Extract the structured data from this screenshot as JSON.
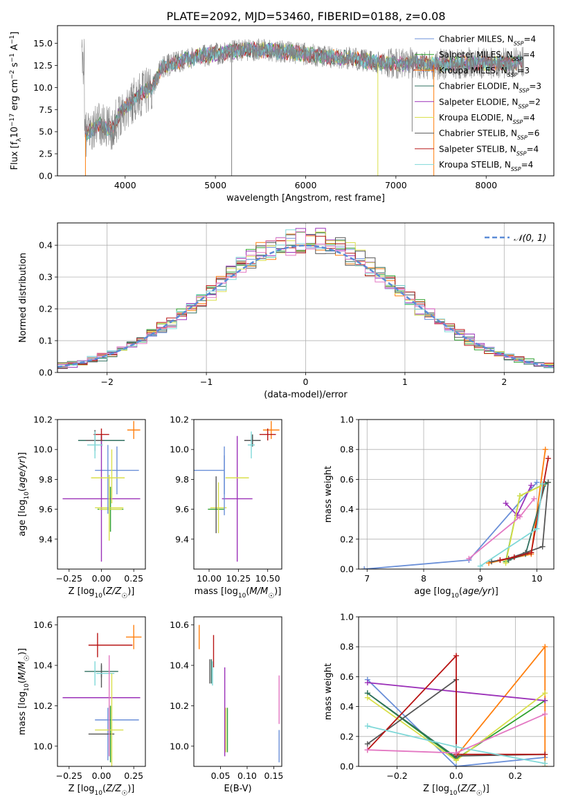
{
  "figure": {
    "title": "PLATE=2092, MJD=53460, FIBERID=0188, z=0.08"
  },
  "series": [
    {
      "key": "cm",
      "label_pre": "Chabrier MILES, N",
      "label_post": "=4",
      "color": "#6a8fd8"
    },
    {
      "key": "sm",
      "label_pre": "Salpeter MILES, N",
      "label_post": "=4",
      "color": "#2ca02c"
    },
    {
      "key": "km",
      "label_pre": "Kroupa MILES, N",
      "label_post": "=3",
      "color": "#ff7f0e"
    },
    {
      "key": "ce",
      "label_pre": "Chabrier ELODIE, N",
      "label_post": "=3",
      "color": "#2f6f5f"
    },
    {
      "key": "se",
      "label_pre": "Salpeter ELODIE, N",
      "label_post": "=2",
      "color": "#9b30b8"
    },
    {
      "key": "ke",
      "label_pre": "Kroupa ELODIE, N",
      "label_post": "=4",
      "color": "#d9df4a"
    },
    {
      "key": "cs",
      "label_pre": "Chabrier STELIB, N",
      "label_post": "=6",
      "color": "#555555"
    },
    {
      "key": "ss",
      "label_pre": "Salpeter STELIB, N",
      "label_post": "=4",
      "color": "#b81414"
    },
    {
      "key": "ks",
      "label_pre": "Kroupa STELIB, N",
      "label_post": "=4",
      "color": "#7fd8d8"
    }
  ],
  "legend_subscript": "SSP",
  "hist_legend": "𝒩(0, 1)",
  "chart_data": [
    {
      "id": "spectrum",
      "type": "line",
      "title": "PLATE=2092, MJD=53460, FIBERID=0188, z=0.08",
      "xlabel": "wavelength [Angstrom, rest frame]",
      "ylabel": "Flux [f_λ 10⁻¹⁷ erg cm⁻² s⁻¹ A⁻¹]",
      "xlim": [
        3250,
        8750
      ],
      "ylim": [
        0,
        17
      ],
      "xticks": [
        4000,
        5000,
        6000,
        7000,
        8000
      ],
      "yticks": [
        0.0,
        2.5,
        5.0,
        7.5,
        10.0,
        12.5,
        15.0
      ],
      "continuum": [
        [
          3550,
          4.6
        ],
        [
          3700,
          5.8
        ],
        [
          3850,
          5.2
        ],
        [
          3950,
          7.2
        ],
        [
          4050,
          8.2
        ],
        [
          4200,
          9.5
        ],
        [
          4300,
          10.0
        ],
        [
          4400,
          12.2
        ],
        [
          4600,
          13.0
        ],
        [
          4800,
          13.5
        ],
        [
          5000,
          13.8
        ],
        [
          5300,
          14.3
        ],
        [
          5600,
          14.2
        ],
        [
          5900,
          13.9
        ],
        [
          6200,
          13.5
        ],
        [
          6500,
          13.3
        ],
        [
          6800,
          12.8
        ],
        [
          7000,
          12.7
        ],
        [
          7200,
          12.8
        ],
        [
          7450,
          12.6
        ],
        [
          7800,
          12.8
        ],
        [
          8200,
          12.7
        ],
        [
          8400,
          12.9
        ]
      ],
      "legend": "upper right"
    },
    {
      "id": "residuals",
      "type": "histogram",
      "xlabel": "(data-model)/error",
      "ylabel": "Normed distribution",
      "xlim": [
        -2.5,
        2.5
      ],
      "ylim": [
        0,
        0.47
      ],
      "xticks": [
        -2,
        -1,
        0,
        1,
        2
      ],
      "yticks": [
        0.0,
        0.1,
        0.2,
        0.3,
        0.4
      ],
      "bin_width": 0.1,
      "curve": "normal(0,1)",
      "grid": true,
      "legend": "upper right"
    },
    {
      "id": "age_vs_Z",
      "type": "errorbar",
      "xlabel": "Z [log10(Z/Z☉)]",
      "ylabel": "age [log10(age/yr)]",
      "xlim": [
        -0.34,
        0.34
      ],
      "ylim": [
        9.2,
        10.2
      ],
      "xticks": [
        -0.25,
        0.0,
        0.25
      ],
      "yticks": [
        9.4,
        9.6,
        9.8,
        10.0,
        10.2
      ],
      "points": [
        {
          "s": "cm",
          "x": 0.12,
          "xe": 0.17,
          "y": 9.86,
          "ye": 0.16
        },
        {
          "s": "sm",
          "x": 0.07,
          "xe": 0.1,
          "y": 9.6,
          "ye": 0.15
        },
        {
          "s": "km",
          "x": 0.25,
          "xe": 0.05,
          "y": 10.13,
          "ye": 0.06
        },
        {
          "s": "ce",
          "x": 0.0,
          "xe": 0.18,
          "y": 10.06,
          "ye": 0.04
        },
        {
          "s": "se",
          "x": 0.0,
          "xe": 0.3,
          "y": 9.67,
          "ye": 0.42
        },
        {
          "s": "ke",
          "x": 0.06,
          "xe": 0.11,
          "y": 9.61,
          "ye": 0.22
        },
        {
          "s": "cs",
          "x": -0.05,
          "xe": 0.07,
          "y": 10.06,
          "ye": 0.07
        },
        {
          "s": "ss",
          "x": 0.0,
          "xe": 0.06,
          "y": 10.1,
          "ye": 0.04
        },
        {
          "s": "ks",
          "x": -0.05,
          "xe": 0.06,
          "y": 10.03,
          "ye": 0.09
        }
      ],
      "extra": [
        {
          "s": "ke",
          "x": 0.07,
          "xe": 0.09,
          "y": 9.6,
          "ye": 0.0
        },
        {
          "s": "cm",
          "x": 0.05,
          "xe": 0.0,
          "y": 9.8,
          "ye": 0.23
        },
        {
          "s": "ke",
          "x": 0.08,
          "xe": 0.0,
          "y": 9.82,
          "ye": 0.18
        },
        {
          "s": "ke",
          "x": 0.05,
          "xe": 0.13,
          "y": 9.81,
          "ye": 0.0
        }
      ]
    },
    {
      "id": "age_vs_mass",
      "type": "errorbar",
      "xlabel": "mass [log10(M/M☉)]",
      "ylabel": "",
      "xlim": [
        9.87,
        10.62
      ],
      "ylim": [
        9.2,
        10.2
      ],
      "xticks": [
        10.0,
        10.25,
        10.5
      ],
      "yticks": [
        9.4,
        9.6,
        9.8,
        10.0,
        10.2
      ],
      "points": [
        {
          "s": "cm",
          "x": 10.0,
          "xe": 0.13,
          "y": 9.86,
          "ye": 0.0
        },
        {
          "s": "cm",
          "x": 10.13,
          "xe": 0.0,
          "y": 9.86,
          "ye": 0.16
        },
        {
          "s": "sm",
          "x": 10.06,
          "xe": 0.07,
          "y": 9.6,
          "ye": 0.0
        },
        {
          "s": "km",
          "x": 10.53,
          "xe": 0.07,
          "y": 10.13,
          "ye": 0.06
        },
        {
          "s": "ce",
          "x": 10.37,
          "xe": 0.04,
          "y": 10.06,
          "ye": 0.04
        },
        {
          "s": "se",
          "x": 10.24,
          "xe": 0.13,
          "y": 9.67,
          "ye": 0.42
        },
        {
          "s": "ke",
          "x": 10.08,
          "xe": 0.07,
          "y": 9.61,
          "ye": 0.17
        },
        {
          "s": "cs",
          "x": 10.37,
          "xe": 0.07,
          "y": 10.06,
          "ye": 0.04
        },
        {
          "s": "ss",
          "x": 10.5,
          "xe": 0.07,
          "y": 10.1,
          "ye": 0.04
        },
        {
          "s": "ks",
          "x": 10.36,
          "xe": 0.03,
          "y": 10.03,
          "ye": 0.09
        },
        {
          "s": "cs",
          "x": 10.06,
          "xe": 0.0,
          "y": 9.63,
          "ye": 0.19
        }
      ],
      "extra": [
        {
          "s": "ke",
          "x": 10.24,
          "xe": 0.1,
          "y": 9.81,
          "ye": 0.0
        },
        {
          "s": "cm",
          "x": 10.13,
          "xe": 0.0,
          "y": 9.76,
          "ye": 0.2
        }
      ]
    },
    {
      "id": "weight_vs_age",
      "type": "line",
      "xlabel": "age [log10(age/yr)]",
      "ylabel": "mass weight",
      "xlim": [
        6.85,
        10.3
      ],
      "ylim": [
        0,
        1
      ],
      "xticks": [
        7,
        8,
        9,
        10
      ],
      "yticks": [
        0.0,
        0.2,
        0.4,
        0.6,
        0.8,
        1.0
      ],
      "grid": true,
      "lines": [
        {
          "s": "cm",
          "x": [
            6.95,
            8.8,
            10.0
          ],
          "y": [
            0.0,
            0.06,
            0.58
          ]
        },
        {
          "s": "sm",
          "x": [
            9.45,
            9.7,
            10.2
          ],
          "y": [
            0.05,
            0.49,
            0.58
          ]
        },
        {
          "s": "km",
          "x": [
            9.15,
            9.9,
            10.15
          ],
          "y": [
            0.04,
            0.1,
            0.8
          ]
        },
        {
          "s": "ce",
          "x": [
            9.5,
            9.8,
            10.15
          ],
          "y": [
            0.06,
            0.1,
            0.57
          ]
        },
        {
          "s": "se",
          "x": [
            9.45,
            9.65,
            9.9
          ],
          "y": [
            0.44,
            0.36,
            0.56
          ]
        },
        {
          "s": "ke",
          "x": [
            9.45,
            9.7,
            10.1
          ],
          "y": [
            0.04,
            0.49,
            0.56
          ]
        },
        {
          "s": "cs",
          "x": [
            9.2,
            9.5,
            9.8,
            10.1,
            10.2
          ],
          "y": [
            0.05,
            0.07,
            0.11,
            0.15,
            0.58
          ]
        },
        {
          "s": "ss",
          "x": [
            9.35,
            9.6,
            9.9,
            10.2
          ],
          "y": [
            0.06,
            0.08,
            0.11,
            0.74
          ]
        },
        {
          "s": "ks",
          "x": [
            9.0,
            10.0,
            10.1
          ],
          "y": [
            0.02,
            0.27,
            0.57
          ]
        },
        {
          "s": "pk",
          "x": [
            8.8,
            9.7,
            9.95
          ],
          "y": [
            0.07,
            0.35,
            0.47
          ]
        }
      ]
    },
    {
      "id": "mass_vs_Z",
      "type": "errorbar",
      "xlabel": "Z [log10(Z/Z☉)]",
      "ylabel": "mass [log10(M/M☉)]",
      "xlim": [
        -0.34,
        0.34
      ],
      "ylim": [
        9.9,
        10.64
      ],
      "xticks": [
        -0.25,
        0.0,
        0.25
      ],
      "yticks": [
        10.0,
        10.2,
        10.4,
        10.6
      ],
      "points": [
        {
          "s": "cm",
          "x": 0.12,
          "xe": 0.17,
          "y": 10.13,
          "ye": 0.0
        },
        {
          "s": "cm",
          "x": 0.05,
          "xe": 0.0,
          "y": 10.06,
          "ye": 0.13
        },
        {
          "s": "sm",
          "x": 0.07,
          "xe": 0.0,
          "y": 10.06,
          "ye": 0.14
        },
        {
          "s": "km",
          "x": 0.25,
          "xe": 0.06,
          "y": 10.54,
          "ye": 0.06
        },
        {
          "s": "ce",
          "x": 0.0,
          "xe": 0.13,
          "y": 10.37,
          "ye": 0.03
        },
        {
          "s": "se",
          "x": 0.0,
          "xe": 0.3,
          "y": 10.24,
          "ye": 0.0
        },
        {
          "s": "ke",
          "x": 0.06,
          "xe": 0.11,
          "y": 10.08,
          "ye": 0.0
        },
        {
          "s": "cs",
          "x": 0.0,
          "xe": 0.1,
          "y": 10.06,
          "ye": 0.0
        },
        {
          "s": "cs",
          "x": 0.0,
          "xe": 0.0,
          "y": 10.35,
          "ye": 0.06
        },
        {
          "s": "ss",
          "x": 0.07,
          "xe": 0.17,
          "y": 10.5,
          "ye": 0.0
        },
        {
          "s": "ss",
          "x": -0.03,
          "xe": 0.0,
          "y": 10.5,
          "ye": 0.06
        },
        {
          "s": "ks",
          "x": 0.03,
          "xe": 0.07,
          "y": 10.36,
          "ye": 0.0
        },
        {
          "s": "ks",
          "x": -0.05,
          "xe": 0.0,
          "y": 10.36,
          "ye": 0.06
        }
      ],
      "extra": [
        {
          "s": "pk",
          "x": 0.06,
          "xe": 0.0,
          "y": 10.2,
          "ye": 0.25
        },
        {
          "s": "ke",
          "x": 0.08,
          "xe": 0.0,
          "y": 10.13,
          "ye": 0.23
        }
      ]
    },
    {
      "id": "mass_vs_ebv",
      "type": "errorbar",
      "xlabel": "E(B-V)",
      "ylabel": "",
      "xlim": [
        0.0,
        0.165
      ],
      "ylim": [
        9.9,
        10.64
      ],
      "xticks": [
        0.05,
        0.1,
        0.15
      ],
      "yticks": [
        10.0,
        10.2,
        10.4,
        10.6
      ],
      "points": [
        {
          "s": "km",
          "x": 0.01,
          "xe": 0.0,
          "y": 10.54,
          "ye": 0.06
        },
        {
          "s": "ce",
          "x": 0.033,
          "xe": 0.0,
          "y": 10.37,
          "ye": 0.06
        },
        {
          "s": "cs",
          "x": 0.03,
          "xe": 0.0,
          "y": 10.37,
          "ye": 0.06
        },
        {
          "s": "ss",
          "x": 0.037,
          "xe": 0.0,
          "y": 10.47,
          "ye": 0.08
        },
        {
          "s": "ks",
          "x": 0.035,
          "xe": 0.0,
          "y": 10.36,
          "ye": 0.06
        },
        {
          "s": "se",
          "x": 0.058,
          "xe": 0.0,
          "y": 10.17,
          "ye": 0.22
        },
        {
          "s": "sm",
          "x": 0.063,
          "xe": 0.0,
          "y": 10.08,
          "ye": 0.11
        },
        {
          "s": "ke",
          "x": 0.06,
          "xe": 0.0,
          "y": 10.08,
          "ye": 0.11
        },
        {
          "s": "cm",
          "x": 0.16,
          "xe": 0.0,
          "y": 10.0,
          "ye": 0.08
        },
        {
          "s": "pk",
          "x": 0.16,
          "xe": 0.0,
          "y": 10.23,
          "ye": 0.12
        }
      ]
    },
    {
      "id": "weight_vs_Z",
      "type": "line",
      "xlabel": "Z [log10(Z/Z☉)]",
      "ylabel": "mass weight",
      "xlim": [
        -0.33,
        0.33
      ],
      "ylim": [
        0,
        1
      ],
      "xticks": [
        -0.2,
        0.0,
        0.2
      ],
      "yticks": [
        0.0,
        0.2,
        0.4,
        0.6,
        0.8,
        1.0
      ],
      "grid": true,
      "lines": [
        {
          "s": "cm",
          "x": [
            -0.3,
            0.0,
            0.3
          ],
          "y": [
            0.58,
            0.0,
            0.06
          ]
        },
        {
          "s": "sm",
          "x": [
            -0.3,
            0.0,
            0.3
          ],
          "y": [
            0.49,
            0.05,
            0.44
          ]
        },
        {
          "s": "km",
          "x": [
            0.0,
            0.3,
            0.3
          ],
          "y": [
            0.07,
            0.8,
            0.0
          ]
        },
        {
          "s": "ce",
          "x": [
            -0.3,
            0.0,
            0.0
          ],
          "y": [
            0.49,
            0.06,
            0.06
          ]
        },
        {
          "s": "se",
          "x": [
            -0.3,
            0.3
          ],
          "y": [
            0.56,
            0.44
          ]
        },
        {
          "s": "ke",
          "x": [
            -0.3,
            0.0,
            0.3
          ],
          "y": [
            0.46,
            0.04,
            0.49
          ]
        },
        {
          "s": "cs",
          "x": [
            -0.3,
            0.0,
            0.0,
            0.3
          ],
          "y": [
            0.15,
            0.58,
            0.07,
            0.08
          ]
        },
        {
          "s": "ss",
          "x": [
            -0.3,
            0.0,
            0.0,
            0.3
          ],
          "y": [
            0.11,
            0.74,
            0.08,
            0.08
          ]
        },
        {
          "s": "ks",
          "x": [
            -0.3,
            0.0,
            0.3
          ],
          "y": [
            0.27,
            0.13,
            0.02
          ]
        },
        {
          "s": "pk",
          "x": [
            -0.3,
            0.0,
            0.3
          ],
          "y": [
            0.11,
            0.09,
            0.35
          ]
        }
      ]
    }
  ]
}
